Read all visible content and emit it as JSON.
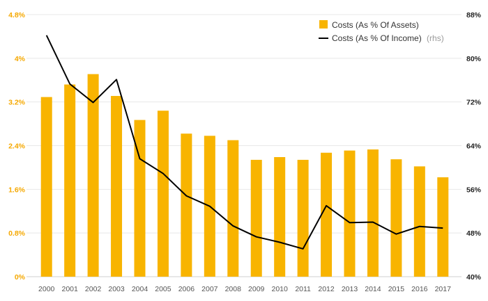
{
  "chart_data": {
    "type": "bar+line",
    "categories": [
      "2000",
      "2001",
      "2002",
      "2003",
      "2004",
      "2005",
      "2006",
      "2007",
      "2008",
      "2009",
      "2010",
      "2011",
      "2012",
      "2013",
      "2014",
      "2015",
      "2016",
      "2017"
    ],
    "series": [
      {
        "name": "Costs (As % Of Assets)",
        "type": "bar",
        "axis": "left",
        "color": "#f8b400",
        "values": [
          3.29,
          3.52,
          3.71,
          3.31,
          2.87,
          3.04,
          2.62,
          2.58,
          2.5,
          2.14,
          2.19,
          2.14,
          2.27,
          2.31,
          2.33,
          2.15,
          2.02,
          1.82
        ]
      },
      {
        "name": "Costs (As % Of Income)",
        "type": "line",
        "axis": "right",
        "color": "#000000",
        "values": [
          84.2,
          75.3,
          71.9,
          76.1,
          61.6,
          58.9,
          54.8,
          52.9,
          49.3,
          47.3,
          46.3,
          45.1,
          53.0,
          49.9,
          50.0,
          47.8,
          49.2,
          48.9
        ]
      }
    ],
    "left_axis": {
      "ylim": [
        0,
        4.8
      ],
      "ticks": [
        0,
        0.8,
        1.6,
        2.4,
        3.2,
        4.0,
        4.8
      ],
      "tick_labels": [
        "0%",
        "0.8%",
        "1.6%",
        "2.4%",
        "3.2%",
        "4%",
        "4.8%"
      ]
    },
    "right_axis": {
      "ylim": [
        40,
        88
      ],
      "ticks": [
        40,
        48,
        56,
        64,
        72,
        80,
        88
      ],
      "tick_labels": [
        "40%",
        "48%",
        "56%",
        "64%",
        "72%",
        "80%",
        "88%"
      ]
    },
    "legend": {
      "placement": "top-right",
      "bar_label": "Costs (As % Of Assets)",
      "line_label": "Costs (As % Of Income)",
      "line_suffix": "(rhs)"
    },
    "grid": true,
    "title": "",
    "xlabel": "",
    "ylabel": ""
  }
}
